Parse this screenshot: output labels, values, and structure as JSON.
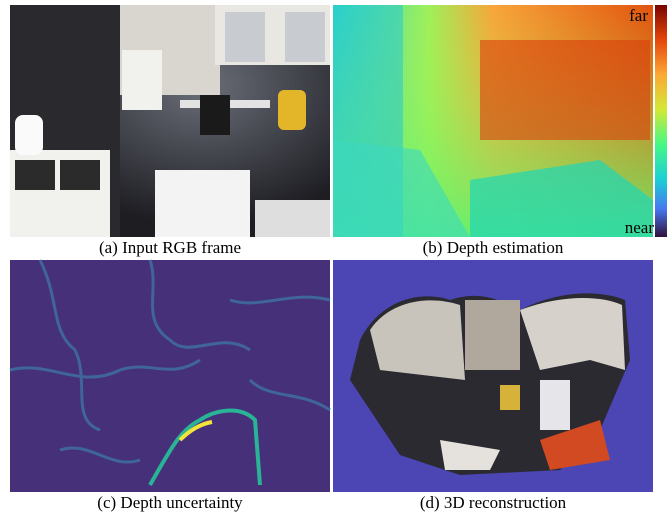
{
  "panels": [
    {
      "caption": "(a) Input RGB frame"
    },
    {
      "caption": "(b) Depth estimation"
    },
    {
      "caption": "(c) Depth uncertainty"
    },
    {
      "caption": "(d) 3D reconstruction"
    }
  ],
  "colorbar": {
    "top": "far",
    "bottom": "near"
  }
}
